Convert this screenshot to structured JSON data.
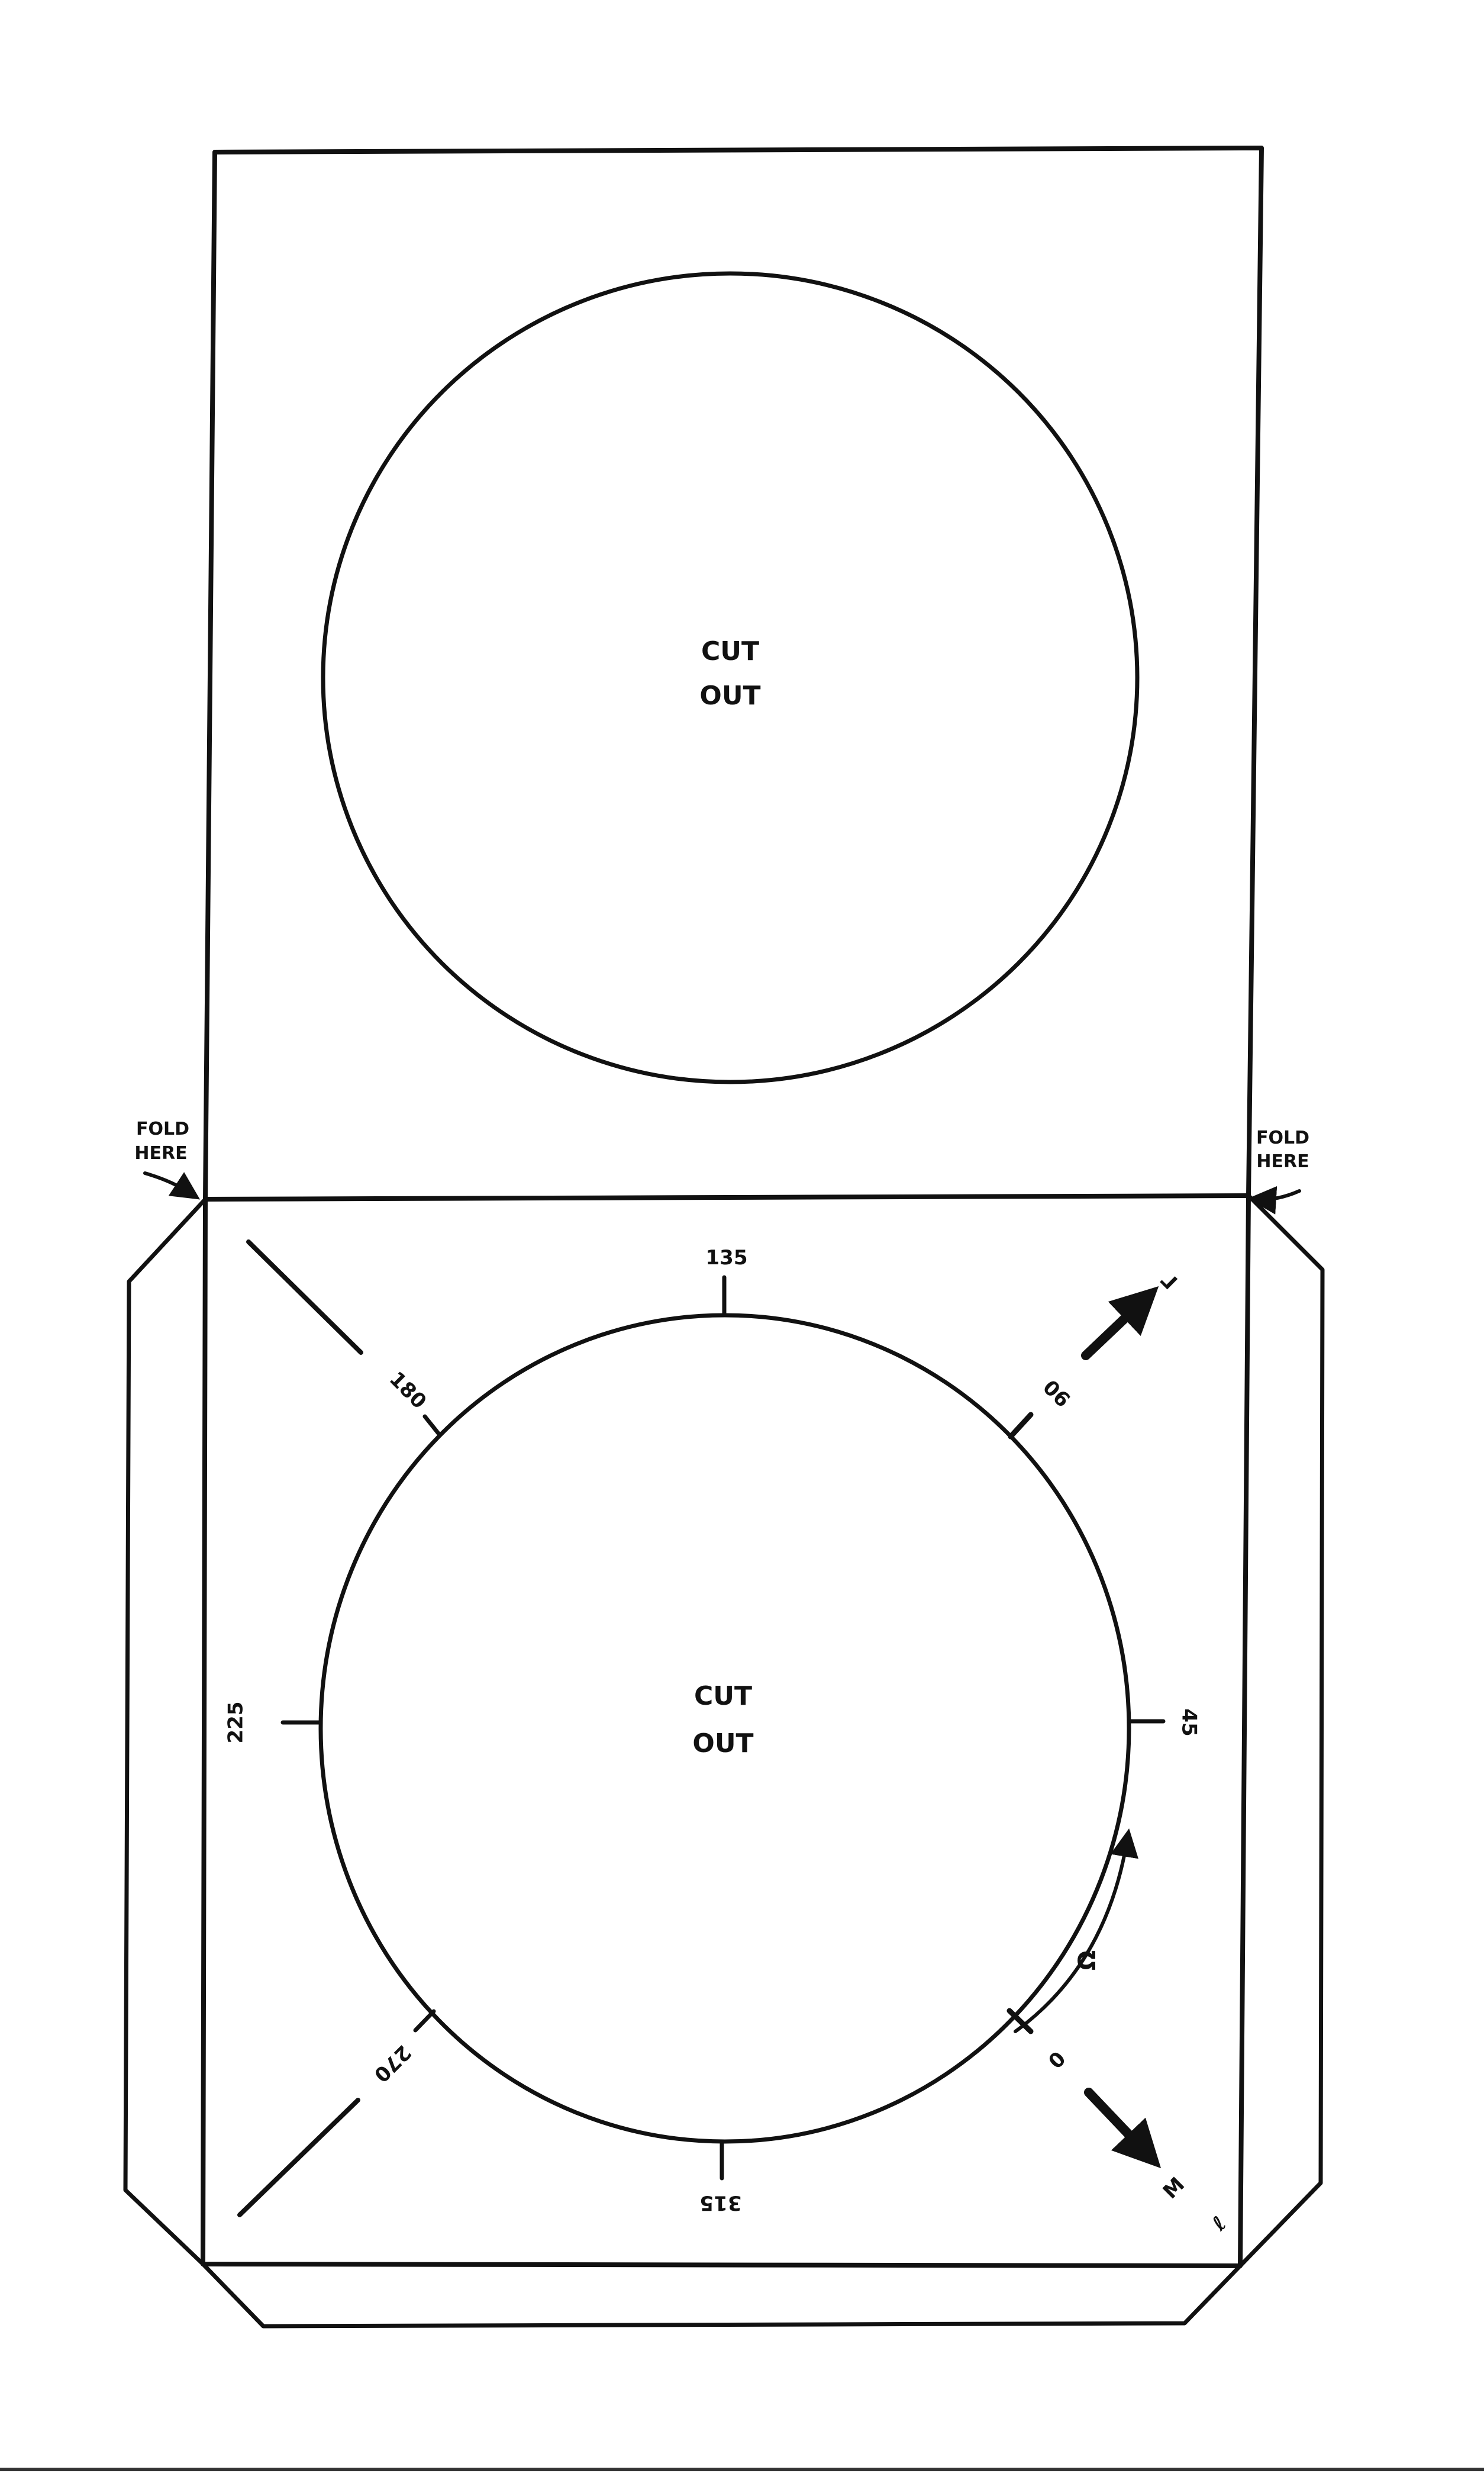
{
  "top_panel": {
    "cutout_label": [
      "CUT",
      "OUT"
    ]
  },
  "fold_labels": {
    "left": [
      "FOLD",
      "HERE"
    ],
    "right": [
      "FOLD",
      "HERE"
    ]
  },
  "bottom_panel": {
    "cutout_label": [
      "CUT",
      "OUT"
    ],
    "angle_labels": {
      "a0": "0",
      "a45": "45",
      "a90": "90",
      "a135": "135",
      "a180": "180",
      "a225": "225",
      "a270": "270",
      "a315": "315"
    },
    "arrow_labels": {
      "arc": "Ω",
      "upper_right": "Γ",
      "lower_right": "M",
      "corner": "ℓ"
    }
  },
  "colors": {
    "ink": "#111111",
    "paper": "#ffffff"
  }
}
